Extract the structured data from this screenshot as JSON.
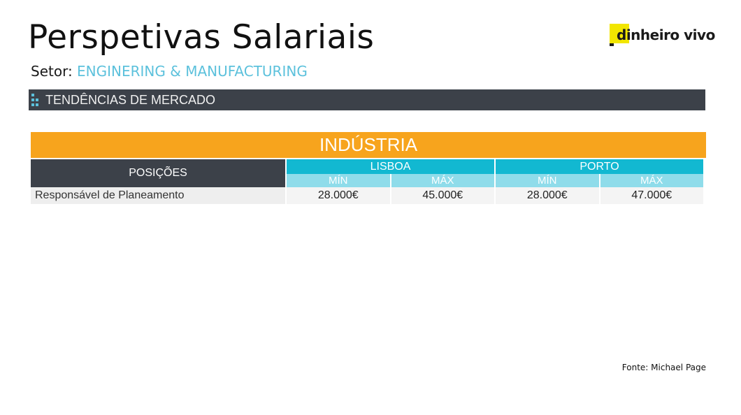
{
  "header": {
    "title": "Perspetivas Salariais",
    "sector_label": "Setor:",
    "sector_value": "ENGINERING & MANUFACTURING"
  },
  "logo": {
    "text": "dinheiro vivo"
  },
  "section": {
    "label": "TENDÊNCIAS DE MERCADO"
  },
  "category": {
    "label": "INDÚSTRIA"
  },
  "table": {
    "positions_header": "POSIÇÕES",
    "cities": [
      "LISBOA",
      "PORTO"
    ],
    "min_label": "MÍN",
    "max_label": "MÁX",
    "rows": [
      {
        "position": "Responsável de Planeamento",
        "values": [
          "28.000€",
          "45.000€",
          "28.000€",
          "47.000€"
        ]
      }
    ]
  },
  "footer": {
    "source": "Fonte: Michael Page"
  },
  "colors": {
    "accent_blue": "#12b8d1",
    "light_blue": "#8fdcea",
    "orange": "#f7a41d",
    "dark_bar": "#3c4149",
    "logo_yellow": "#f2e600"
  }
}
